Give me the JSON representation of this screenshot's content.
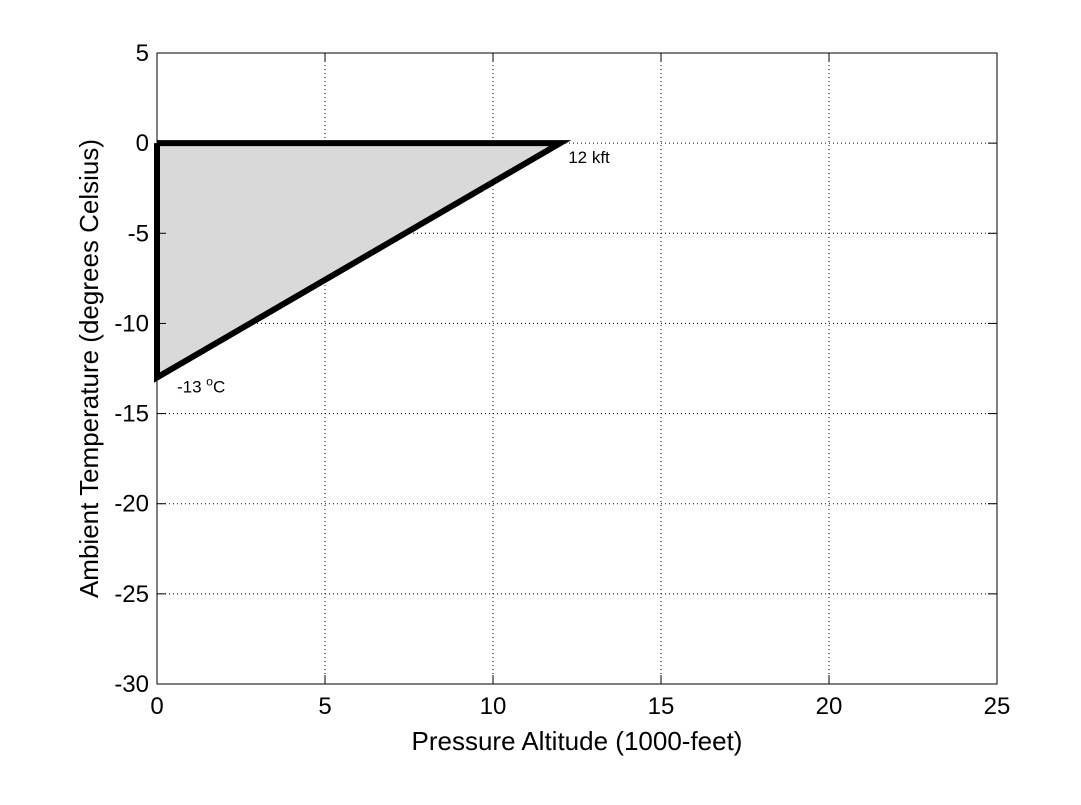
{
  "chart_data": {
    "type": "area",
    "title": "",
    "xlabel": "Pressure Altitude (1000-feet)",
    "ylabel": "Ambient Temperature (degrees Celsius)",
    "xlim": [
      0,
      25
    ],
    "ylim": [
      -30,
      5
    ],
    "xticks": [
      0,
      5,
      10,
      15,
      20,
      25
    ],
    "yticks": [
      5,
      0,
      -5,
      -10,
      -15,
      -20,
      -25,
      -30
    ],
    "grid": true,
    "fill_color": "#d9d9d9",
    "line_color": "#000000",
    "region": {
      "x": [
        0,
        12,
        0,
        0
      ],
      "y": [
        0,
        0,
        -13,
        0
      ]
    },
    "annotations": [
      {
        "text": "12 kft",
        "x": 12,
        "y": 0
      },
      {
        "text": "-13",
        "sup": "o",
        "suffix": "C",
        "x": 0,
        "y": -13
      }
    ]
  }
}
